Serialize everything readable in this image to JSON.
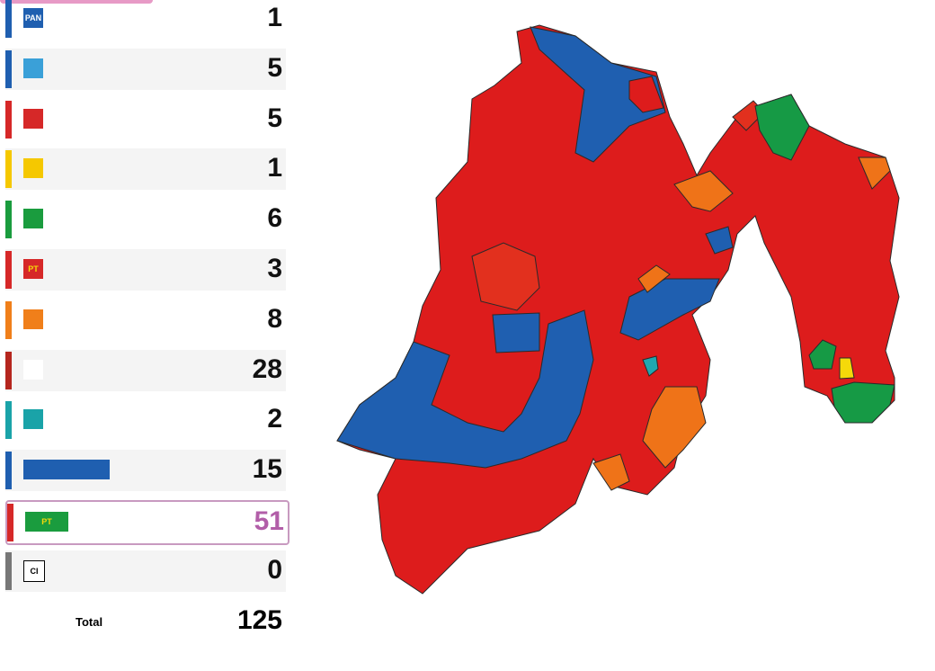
{
  "rows": [
    {
      "logo": "PAN",
      "value": "1"
    },
    {
      "value": "5"
    },
    {
      "value": "5"
    },
    {
      "value": "1"
    },
    {
      "value": "6"
    },
    {
      "logo": "PT",
      "value": "3"
    },
    {
      "value": "8"
    },
    {
      "value": "28"
    },
    {
      "value": "2"
    },
    {
      "value": "15"
    },
    {
      "logo": "PT",
      "value": "51"
    },
    {
      "logo": "CI",
      "value": "0"
    }
  ],
  "total": {
    "label": "Total",
    "value": "125"
  }
}
